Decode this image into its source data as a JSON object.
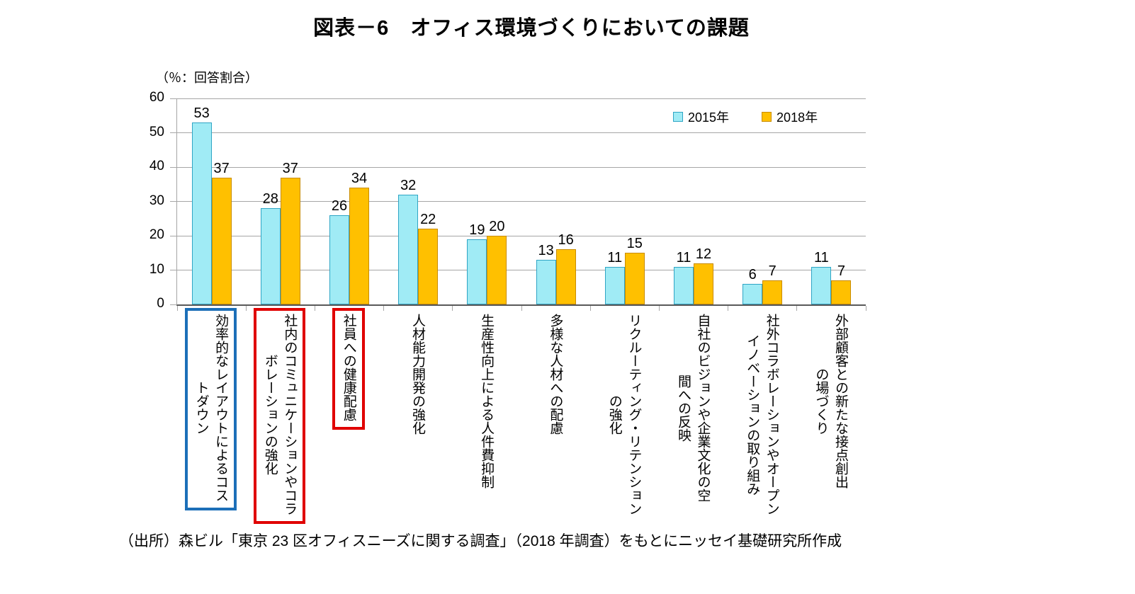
{
  "title": "図表－6　オフィス環境づくりにおいての課題",
  "unit_label": "（％：回答割合）",
  "source_note": "（出所）森ビル「東京 23 区オフィスニーズに関する調査」（2018 年調査）をもとにニッセイ基礎研究所作成",
  "colors": {
    "gridline": "#A6A6A6",
    "axis": "#595959",
    "text": "#000000",
    "highlight_blue": "#1C6FB8",
    "highlight_red": "#E00000"
  },
  "chart_data": {
    "type": "bar",
    "title": "図表－6　オフィス環境づくりにおいての課題",
    "ylabel": "（％：回答割合）",
    "xlabel": "",
    "ylim": [
      0,
      60
    ],
    "yticks": [
      0,
      10,
      20,
      30,
      40,
      50,
      60
    ],
    "grid": true,
    "legend_position": "top-right",
    "categories": [
      "効率的なレイアウトによるコス\nトダウン",
      "社内のコミュニケーションやコラ\nボレーションの強化",
      "社員への健康配慮",
      "人材能力開発の強化",
      "生産性向上による人件費抑制",
      "多様な人材への配慮",
      "リクルーティング・リテンション\nの強化",
      "自社のビジョンや企業文化の空\n間への反映",
      "社外コラボレーションやオープン\nイノベーションの取り組み",
      "外部顧客との新たな接点創出\nの場づくり"
    ],
    "series": [
      {
        "name": "2015年",
        "fill": "#A0EBF5",
        "border": "#2FA5C5",
        "values": [
          53,
          28,
          26,
          32,
          19,
          13,
          11,
          11,
          6,
          11
        ]
      },
      {
        "name": "2018年",
        "fill": "#FFC000",
        "border": "#C98C00",
        "values": [
          37,
          37,
          34,
          22,
          20,
          16,
          15,
          12,
          7,
          7
        ]
      }
    ],
    "highlights": [
      {
        "category_index": 0,
        "color": "#1C6FB8",
        "style": "box"
      },
      {
        "category_index": 1,
        "color": "#E00000",
        "style": "box"
      },
      {
        "category_index": 2,
        "color": "#E00000",
        "style": "box"
      }
    ]
  }
}
